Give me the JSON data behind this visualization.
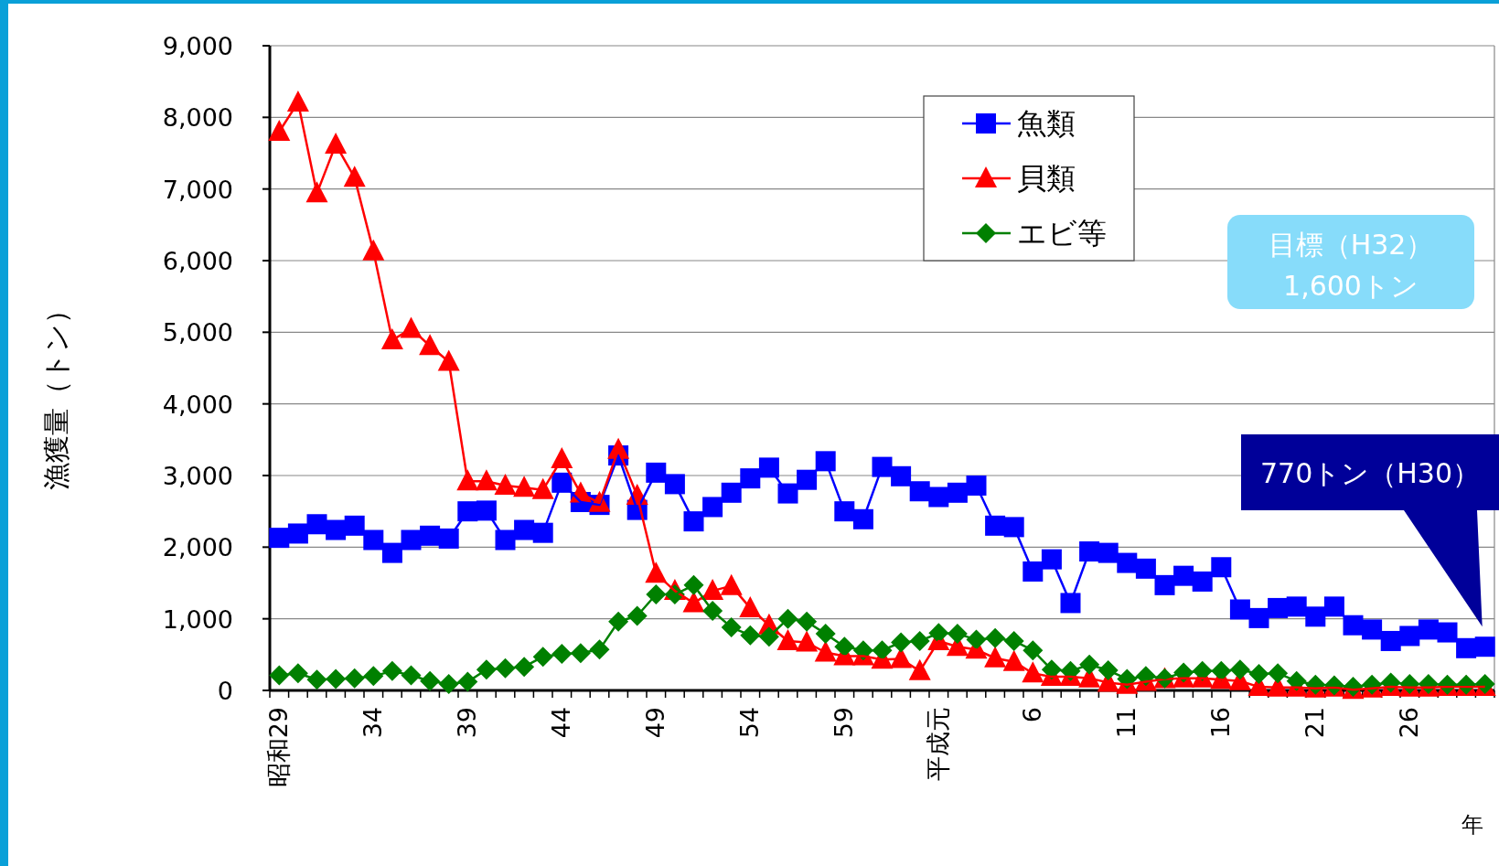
{
  "chart_data": {
    "type": "line",
    "ylabel": "漁獲量（トン）",
    "xlabel": "年",
    "categories": [
      "昭和29",
      null,
      null,
      null,
      null,
      "34",
      null,
      null,
      null,
      null,
      "39",
      null,
      null,
      null,
      null,
      "44",
      null,
      null,
      null,
      null,
      "49",
      null,
      null,
      null,
      null,
      "54",
      null,
      null,
      null,
      null,
      "59",
      null,
      null,
      null,
      null,
      "平成元",
      null,
      null,
      null,
      null,
      "6",
      null,
      null,
      null,
      null,
      "11",
      null,
      null,
      null,
      null,
      "16",
      null,
      null,
      null,
      null,
      "21",
      null,
      null,
      null,
      null,
      "26",
      null,
      null,
      null,
      null
    ],
    "ylim": [
      0,
      9000
    ],
    "yticks": [
      0,
      {
        "value": 1000,
        "label": "1,000"
      },
      {
        "value": 2000,
        "label": "2,000"
      },
      {
        "value": 3000,
        "label": "3,000"
      },
      {
        "value": 4000,
        "label": "4,000"
      },
      {
        "value": 5000,
        "label": "5,000"
      },
      {
        "value": 6000,
        "label": "6,000"
      },
      {
        "value": 7000,
        "label": "7,000"
      },
      {
        "value": 8000,
        "label": "8,000"
      },
      {
        "value": 9000,
        "label": "9,000"
      }
    ],
    "grid": "y",
    "legend": "top right",
    "series": [
      {
        "name": "魚類",
        "color": "#0000ff",
        "marker": "square",
        "values": [
          2130,
          2190,
          2320,
          2240,
          2300,
          2100,
          1920,
          2100,
          2160,
          2120,
          2500,
          2510,
          2100,
          2240,
          2200,
          2900,
          2630,
          2590,
          3280,
          2520,
          3040,
          2880,
          2360,
          2560,
          2760,
          2960,
          3110,
          2750,
          2940,
          3200,
          2500,
          2390,
          3120,
          2990,
          2780,
          2700,
          2760,
          2860,
          2300,
          2280,
          1660,
          1830,
          1220,
          1940,
          1920,
          1780,
          1700,
          1470,
          1600,
          1520,
          1720,
          1130,
          1010,
          1150,
          1170,
          1030,
          1170,
          910,
          850,
          690,
          760,
          850,
          810,
          590,
          610
        ]
      },
      {
        "name": "貝類",
        "color": "#ff0000",
        "marker": "triangle",
        "values": [
          7800,
          8210,
          6940,
          7620,
          7160,
          6130,
          4890,
          5050,
          4810,
          4590,
          2920,
          2920,
          2860,
          2830,
          2800,
          3230,
          2750,
          2620,
          3360,
          2720,
          1630,
          1390,
          1220,
          1390,
          1460,
          1150,
          910,
          690,
          670,
          530,
          480,
          480,
          430,
          440,
          270,
          690,
          610,
          570,
          450,
          400,
          240,
          190,
          190,
          170,
          110,
          80,
          120,
          160,
          170,
          170,
          150,
          130,
          50,
          40,
          40,
          30,
          40,
          10,
          30,
          50,
          40,
          40,
          50,
          50,
          50
        ]
      },
      {
        "name": "エビ等",
        "color": "#008000",
        "marker": "diamond",
        "values": [
          210,
          240,
          150,
          160,
          170,
          200,
          270,
          210,
          130,
          90,
          120,
          290,
          310,
          330,
          470,
          510,
          520,
          570,
          960,
          1040,
          1340,
          1340,
          1470,
          1110,
          880,
          770,
          750,
          1000,
          960,
          790,
          610,
          560,
          560,
          670,
          690,
          800,
          790,
          710,
          730,
          690,
          560,
          290,
          270,
          360,
          280,
          160,
          200,
          170,
          250,
          270,
          270,
          290,
          230,
          240,
          130,
          80,
          70,
          50,
          80,
          110,
          90,
          90,
          80,
          80,
          90
        ]
      }
    ],
    "annotations": [
      "目標（H32）",
      "1,600トン",
      "770トン（H30）"
    ]
  }
}
